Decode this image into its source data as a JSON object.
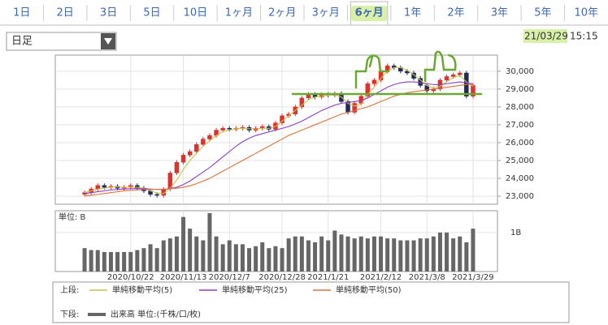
{
  "tabs": [
    "1日",
    "2日",
    "3日",
    "5日",
    "10日",
    "1ヶ月",
    "2ヶ月",
    "3ヶ月",
    "6ヶ月",
    "1年",
    "2年",
    "3年",
    "5年",
    "10年"
  ],
  "selected_tab": 8,
  "dropdown": "日足",
  "timestamp": {
    "date": "21/03/29",
    "time": "15:15"
  },
  "legend": {
    "upper": "上段:",
    "lower": "下段:"
  },
  "chart_data": [
    {
      "type": "candlestick",
      "up_color": "#e0302c",
      "down_color": "#1d2c5a",
      "open": [
        23100,
        23200,
        23400,
        23600,
        23500,
        23550,
        23450,
        23500,
        23600,
        23450,
        23300,
        23100,
        23050,
        23400,
        24300,
        24900,
        25300,
        25500,
        25900,
        26200,
        26400,
        26700,
        26800,
        26750,
        26800,
        26850,
        26700,
        26800,
        26900,
        26750,
        27100,
        27500,
        27600,
        28000,
        28500,
        28700,
        28550,
        28700,
        28650,
        28750,
        28300,
        27700,
        28200,
        28600,
        29300,
        29500,
        30000,
        30300,
        30200,
        30000,
        29900,
        29600,
        29200,
        28900,
        29000,
        29500,
        29700,
        29800,
        29900,
        28600
      ],
      "high": [
        23320,
        23520,
        23720,
        23720,
        23670,
        23670,
        23620,
        23720,
        23720,
        23570,
        23420,
        23220,
        23520,
        24420,
        25020,
        25420,
        25620,
        26020,
        26320,
        26520,
        26820,
        26920,
        26920,
        26920,
        26970,
        26970,
        26920,
        27020,
        27020,
        27220,
        27620,
        27720,
        28120,
        28620,
        28820,
        28820,
        28820,
        28820,
        28870,
        28870,
        28420,
        28320,
        28720,
        29420,
        29620,
        30120,
        30420,
        30420,
        30320,
        30120,
        30020,
        29720,
        29320,
        29120,
        29620,
        29820,
        29920,
        30020,
        30020,
        29320
      ],
      "low": [
        22980,
        23080,
        23280,
        23380,
        23380,
        23330,
        23330,
        23380,
        23330,
        23180,
        22980,
        22930,
        22930,
        23280,
        24180,
        24780,
        25180,
        25380,
        25780,
        26080,
        26280,
        26580,
        26630,
        26630,
        26680,
        26580,
        26580,
        26680,
        26630,
        26630,
        26980,
        27380,
        27480,
        27880,
        28380,
        28430,
        28430,
        28530,
        28530,
        28180,
        27580,
        27580,
        28080,
        28480,
        29180,
        29380,
        29880,
        30080,
        29880,
        29780,
        29480,
        29080,
        28780,
        28780,
        28880,
        29380,
        29580,
        29680,
        28480,
        28480
      ],
      "close": [
        23200,
        23400,
        23600,
        23500,
        23550,
        23450,
        23500,
        23600,
        23450,
        23300,
        23100,
        23050,
        23400,
        24300,
        24900,
        25300,
        25500,
        25900,
        26200,
        26400,
        26700,
        26800,
        26750,
        26800,
        26850,
        26700,
        26800,
        26900,
        26750,
        27100,
        27500,
        27600,
        28000,
        28500,
        28700,
        28550,
        28700,
        28650,
        28750,
        28300,
        27700,
        28200,
        28600,
        29300,
        29500,
        30000,
        30300,
        30200,
        30000,
        29900,
        29600,
        29200,
        28900,
        29000,
        29500,
        29700,
        29800,
        29900,
        28600,
        29200
      ],
      "series": [
        {
          "name": "単純移動平均(5)",
          "color": "#c9c24a",
          "values": [
            23200,
            23300,
            23400,
            23450,
            23500,
            23520,
            23500,
            23520,
            23500,
            23450,
            23300,
            23180,
            23150,
            23450,
            23900,
            24500,
            25000,
            25400,
            25800,
            26100,
            26400,
            26600,
            26700,
            26780,
            26800,
            26780,
            26770,
            26800,
            26800,
            26900,
            27200,
            27500,
            27800,
            28100,
            28400,
            28550,
            28600,
            28650,
            28680,
            28550,
            28200,
            28050,
            28150,
            28700,
            29100,
            29600,
            30000,
            30200,
            30200,
            30050,
            29800,
            29500,
            29200,
            29050,
            29150,
            29400,
            29650,
            29750,
            29400,
            29150
          ]
        },
        {
          "name": "単純移動平均(25)",
          "color": "#8a3fc4",
          "values": [
            23150,
            23200,
            23250,
            23300,
            23350,
            23380,
            23400,
            23420,
            23430,
            23420,
            23400,
            23380,
            23380,
            23420,
            23500,
            23650,
            23850,
            24100,
            24350,
            24600,
            24900,
            25200,
            25500,
            25800,
            26050,
            26250,
            26400,
            26500,
            26600,
            26700,
            26800,
            26900,
            27050,
            27200,
            27400,
            27600,
            27800,
            27950,
            28100,
            28200,
            28250,
            28300,
            28350,
            28500,
            28700,
            28900,
            29100,
            29250,
            29350,
            29400,
            29400,
            29350,
            29300,
            29250,
            29250,
            29300,
            29350,
            29400,
            29350,
            29300
          ]
        },
        {
          "name": "単純移動平均(50)",
          "color": "#e0703a",
          "values": [
            23000,
            23050,
            23100,
            23150,
            23200,
            23250,
            23300,
            23330,
            23350,
            23370,
            23380,
            23390,
            23400,
            23420,
            23450,
            23500,
            23580,
            23700,
            23850,
            24000,
            24200,
            24400,
            24600,
            24800,
            25000,
            25200,
            25400,
            25600,
            25800,
            26000,
            26200,
            26400,
            26550,
            26700,
            26850,
            27000,
            27150,
            27300,
            27450,
            27600,
            27700,
            27800,
            27900,
            28000,
            28150,
            28300,
            28450,
            28600,
            28700,
            28800,
            28850,
            28900,
            28950,
            29000,
            29050,
            29100,
            29150,
            29200,
            29250,
            29250
          ]
        }
      ],
      "ylim": [
        22550,
        30900
      ],
      "yticks": [
        {
          "value": 23000,
          "label": "23,000"
        },
        {
          "value": 24000,
          "label": "24,000"
        },
        {
          "value": 25000,
          "label": "25,000"
        },
        {
          "value": 26000,
          "label": "26,000"
        },
        {
          "value": 27000,
          "label": "27,000"
        },
        {
          "value": 28000,
          "label": "28,000"
        },
        {
          "value": 29000,
          "label": "29,000"
        },
        {
          "value": 30000,
          "label": "30,000"
        }
      ],
      "grid": true
    },
    {
      "type": "bar",
      "unit_label": "単位: B",
      "categories": [
        null,
        null,
        null,
        null,
        null,
        null,
        null,
        "2020/10/22",
        null,
        null,
        null,
        null,
        null,
        null,
        null,
        "2020/11/13",
        null,
        null,
        null,
        null,
        null,
        null,
        "2020/12/7",
        null,
        null,
        null,
        null,
        null,
        null,
        null,
        "2020/12/28",
        null,
        null,
        null,
        null,
        null,
        null,
        "2021/1/21",
        null,
        null,
        null,
        null,
        null,
        null,
        null,
        "2021/2/12",
        null,
        null,
        null,
        null,
        null,
        null,
        "2021/3/8",
        null,
        null,
        null,
        null,
        null,
        null,
        "2021/3/29"
      ],
      "series": [
        {
          "name": "出来高 単位:(千株/口/枚)",
          "color": "#666666",
          "values": [
            0.6,
            0.55,
            0.55,
            0.5,
            0.5,
            0.5,
            0.5,
            0.5,
            0.55,
            0.6,
            0.7,
            0.6,
            0.8,
            0.85,
            0.9,
            1.4,
            1.1,
            0.9,
            0.8,
            1.5,
            0.9,
            0.7,
            0.8,
            0.7,
            0.7,
            0.6,
            0.65,
            0.75,
            0.6,
            0.65,
            0.6,
            0.85,
            0.9,
            0.9,
            0.8,
            0.75,
            0.9,
            0.8,
            1.05,
            0.95,
            0.9,
            0.85,
            0.9,
            0.85,
            0.9,
            0.9,
            0.85,
            0.85,
            0.8,
            0.8,
            0.8,
            0.85,
            0.85,
            0.9,
            1.0,
            1.0,
            0.85,
            0.9,
            0.75,
            1.1
          ]
        }
      ],
      "ylim": [
        0,
        1.56
      ],
      "yticks": [
        {
          "value": 1,
          "label": "1B"
        }
      ],
      "grid": true
    }
  ]
}
